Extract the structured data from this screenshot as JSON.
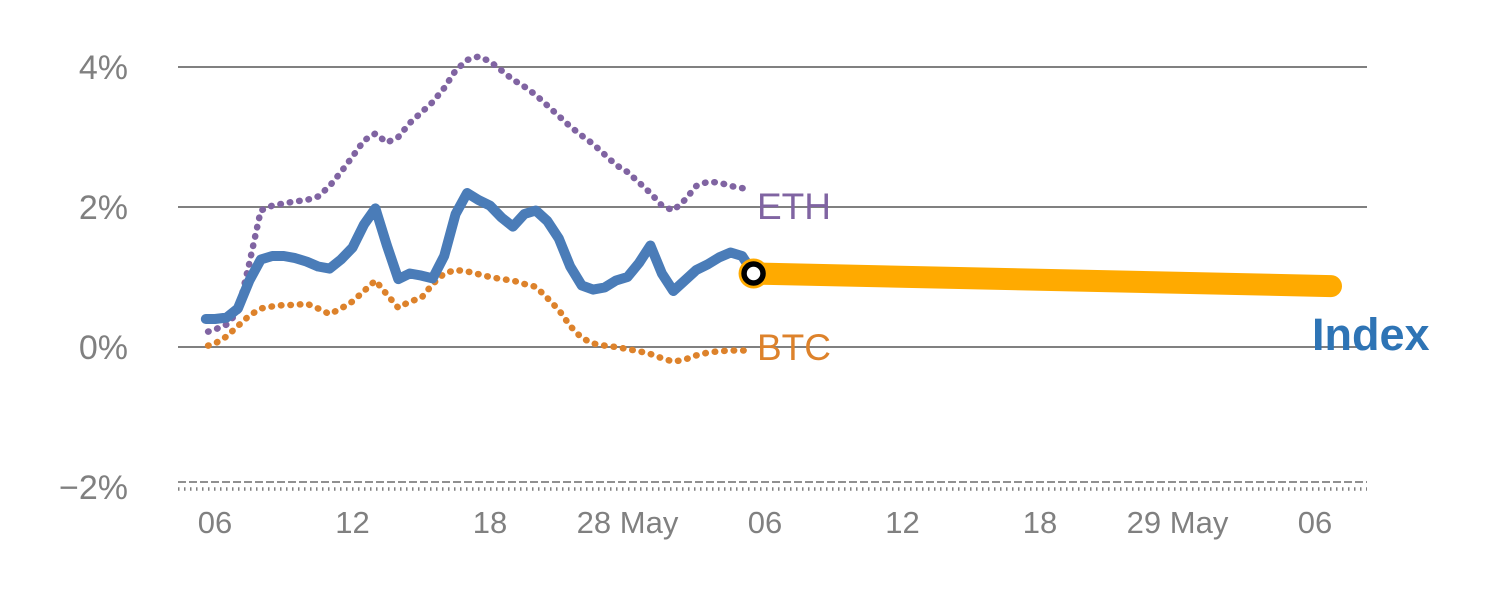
{
  "chart_data": {
    "type": "line",
    "x_axis": {
      "unit": "hours-from-first-tick",
      "tick_positions": [
        0,
        6,
        12,
        18,
        24,
        30,
        36,
        42,
        48
      ],
      "tick_labels": [
        "06",
        "12",
        "18",
        "28 May",
        "06",
        "12",
        "18",
        "29 May",
        "06"
      ],
      "range": [
        -1.6,
        50.2
      ]
    },
    "y_axis": {
      "tick_values": [
        4,
        2,
        0,
        -2
      ],
      "tick_labels": [
        "4%",
        "2%",
        "0%",
        "−2%"
      ],
      "gridline_values": [
        4,
        2,
        0
      ],
      "baseline_value": -2,
      "range": [
        -2,
        4.5
      ]
    },
    "series": [
      {
        "label": "ETH",
        "color": "#8064A2",
        "line_style": "dotted",
        "points": [
          [
            -0.3,
            0.22
          ],
          [
            0,
            0.25
          ],
          [
            0.5,
            0.32
          ],
          [
            1,
            0.5
          ],
          [
            1.5,
            1.2
          ],
          [
            2,
            1.95
          ],
          [
            2.5,
            2.02
          ],
          [
            3,
            2.05
          ],
          [
            3.5,
            2.08
          ],
          [
            4,
            2.1
          ],
          [
            4.5,
            2.15
          ],
          [
            5,
            2.3
          ],
          [
            5.5,
            2.5
          ],
          [
            6,
            2.72
          ],
          [
            6.5,
            2.95
          ],
          [
            7,
            3.05
          ],
          [
            7.5,
            2.92
          ],
          [
            8,
            3.0
          ],
          [
            8.5,
            3.2
          ],
          [
            9,
            3.35
          ],
          [
            9.5,
            3.5
          ],
          [
            10,
            3.7
          ],
          [
            10.5,
            3.95
          ],
          [
            11,
            4.1
          ],
          [
            11.5,
            4.15
          ],
          [
            12,
            4.08
          ],
          [
            12.5,
            3.95
          ],
          [
            13,
            3.82
          ],
          [
            13.5,
            3.72
          ],
          [
            14,
            3.6
          ],
          [
            14.5,
            3.45
          ],
          [
            15,
            3.3
          ],
          [
            15.5,
            3.15
          ],
          [
            16,
            3.02
          ],
          [
            16.5,
            2.9
          ],
          [
            17,
            2.75
          ],
          [
            17.5,
            2.6
          ],
          [
            18,
            2.5
          ],
          [
            18.5,
            2.35
          ],
          [
            19,
            2.2
          ],
          [
            19.5,
            2.02
          ],
          [
            20,
            1.95
          ],
          [
            20.5,
            2.1
          ],
          [
            21,
            2.3
          ],
          [
            21.5,
            2.36
          ],
          [
            22,
            2.35
          ],
          [
            22.5,
            2.3
          ],
          [
            23,
            2.27
          ],
          [
            23.3,
            2.25
          ]
        ]
      },
      {
        "label": "BTC",
        "color": "#DD822B",
        "line_style": "dotted",
        "points": [
          [
            -0.3,
            0.02
          ],
          [
            0,
            0.05
          ],
          [
            0.5,
            0.15
          ],
          [
            1,
            0.3
          ],
          [
            1.5,
            0.45
          ],
          [
            2,
            0.55
          ],
          [
            2.5,
            0.58
          ],
          [
            3,
            0.6
          ],
          [
            3.5,
            0.6
          ],
          [
            4,
            0.62
          ],
          [
            4.5,
            0.55
          ],
          [
            5,
            0.47
          ],
          [
            5.5,
            0.55
          ],
          [
            6,
            0.65
          ],
          [
            6.5,
            0.8
          ],
          [
            7,
            0.95
          ],
          [
            7.5,
            0.75
          ],
          [
            8,
            0.56
          ],
          [
            8.5,
            0.65
          ],
          [
            9,
            0.7
          ],
          [
            9.5,
            0.9
          ],
          [
            10,
            1.05
          ],
          [
            10.5,
            1.1
          ],
          [
            11,
            1.08
          ],
          [
            11.5,
            1.04
          ],
          [
            12,
            1.0
          ],
          [
            12.5,
            0.97
          ],
          [
            13,
            0.95
          ],
          [
            13.5,
            0.9
          ],
          [
            14,
            0.86
          ],
          [
            14.5,
            0.7
          ],
          [
            15,
            0.53
          ],
          [
            15.5,
            0.3
          ],
          [
            16,
            0.13
          ],
          [
            16.5,
            0.05
          ],
          [
            17,
            0.02
          ],
          [
            17.5,
            0.0
          ],
          [
            18,
            -0.03
          ],
          [
            18.5,
            -0.06
          ],
          [
            19,
            -0.1
          ],
          [
            19.5,
            -0.16
          ],
          [
            20,
            -0.21
          ],
          [
            20.5,
            -0.18
          ],
          [
            21,
            -0.12
          ],
          [
            21.5,
            -0.08
          ],
          [
            22,
            -0.06
          ],
          [
            22.5,
            -0.05
          ],
          [
            23,
            -0.05
          ],
          [
            23.3,
            -0.05
          ]
        ]
      },
      {
        "label": "Index",
        "color": "#4A7CB8",
        "line_style": "solid",
        "points": [
          [
            -0.4,
            0.4
          ],
          [
            0,
            0.4
          ],
          [
            0.5,
            0.42
          ],
          [
            1,
            0.55
          ],
          [
            1.5,
            0.95
          ],
          [
            2,
            1.25
          ],
          [
            2.5,
            1.3
          ],
          [
            3,
            1.3
          ],
          [
            3.5,
            1.27
          ],
          [
            4,
            1.22
          ],
          [
            4.5,
            1.15
          ],
          [
            5,
            1.12
          ],
          [
            5.5,
            1.25
          ],
          [
            6,
            1.42
          ],
          [
            6.5,
            1.75
          ],
          [
            7,
            1.98
          ],
          [
            7.5,
            1.45
          ],
          [
            8,
            0.97
          ],
          [
            8.5,
            1.05
          ],
          [
            9,
            1.02
          ],
          [
            9.5,
            0.98
          ],
          [
            10,
            1.3
          ],
          [
            10.5,
            1.9
          ],
          [
            11,
            2.2
          ],
          [
            11.5,
            2.1
          ],
          [
            12,
            2.02
          ],
          [
            12.5,
            1.85
          ],
          [
            13,
            1.72
          ],
          [
            13.5,
            1.9
          ],
          [
            14,
            1.95
          ],
          [
            14.5,
            1.8
          ],
          [
            15,
            1.55
          ],
          [
            15.5,
            1.15
          ],
          [
            16,
            0.88
          ],
          [
            16.5,
            0.82
          ],
          [
            17,
            0.85
          ],
          [
            17.5,
            0.95
          ],
          [
            18,
            1.0
          ],
          [
            18.5,
            1.2
          ],
          [
            19,
            1.45
          ],
          [
            19.5,
            1.05
          ],
          [
            20,
            0.8
          ],
          [
            20.5,
            0.95
          ],
          [
            21,
            1.1
          ],
          [
            21.5,
            1.18
          ],
          [
            22,
            1.28
          ],
          [
            22.5,
            1.35
          ],
          [
            23,
            1.3
          ],
          [
            23.5,
            1.05
          ]
        ]
      }
    ],
    "forecast_band": {
      "for_series": "Index",
      "color": "#FFAA00",
      "points": [
        [
          23.5,
          1.05
        ],
        [
          48.7,
          0.87
        ]
      ]
    },
    "endpoint_marker": {
      "x": 23.5,
      "y": 1.05,
      "halo_color": "#FFAA00",
      "ring_color": "#000000",
      "fill_color": "#FFFFFF"
    },
    "colors": {
      "grid": "#808080",
      "axis_text": "#808080",
      "index_label": "#2E74B5"
    }
  }
}
